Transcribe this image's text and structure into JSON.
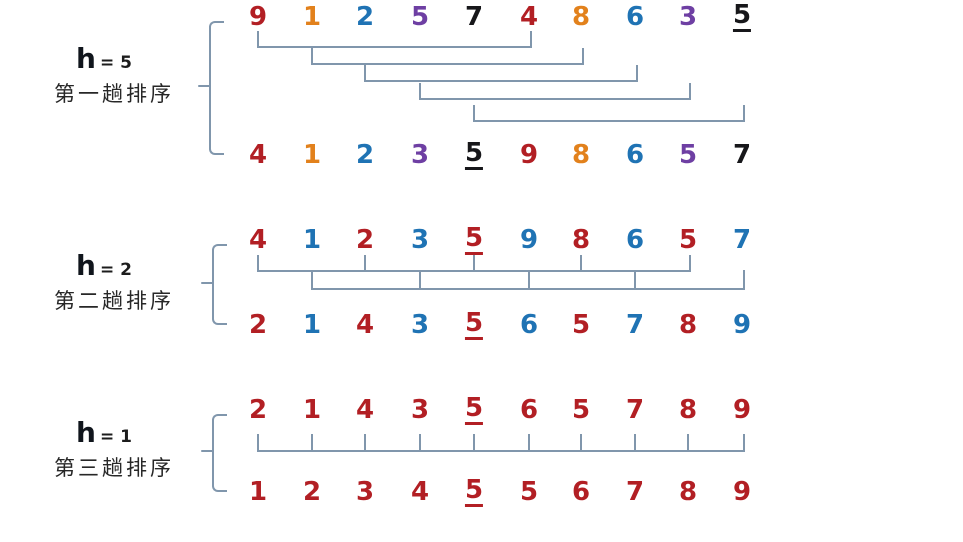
{
  "palette": {
    "red": "#b21f24",
    "orange": "#e2811c",
    "blue": "#1f73b4",
    "purple": "#6e3fa3",
    "black": "#17171a",
    "line": "#8096ac"
  },
  "sections": [
    {
      "h_var": "h",
      "h_eq": "= 5",
      "pass_label": "第一趟排序",
      "link_type": "pairs",
      "links": [
        [
          0,
          5
        ],
        [
          1,
          6
        ],
        [
          2,
          7
        ],
        [
          3,
          8
        ],
        [
          4,
          9
        ]
      ],
      "input": {
        "values": [
          "9",
          "1",
          "2",
          "5",
          "7",
          "4",
          "8",
          "6",
          "3",
          "5"
        ],
        "colors": [
          "red",
          "orange",
          "blue",
          "purple",
          "black",
          "red",
          "orange",
          "blue",
          "purple",
          "black"
        ],
        "underline": 9
      },
      "output": {
        "values": [
          "4",
          "1",
          "2",
          "3",
          "5",
          "9",
          "8",
          "6",
          "5",
          "7"
        ],
        "colors": [
          "red",
          "orange",
          "blue",
          "purple",
          "black",
          "red",
          "orange",
          "blue",
          "purple",
          "black"
        ],
        "underline": 4
      }
    },
    {
      "h_var": "h",
      "h_eq": "= 2",
      "pass_label": "第二趟排序",
      "link_type": "combs",
      "links": [
        [
          0,
          2,
          4,
          6,
          8
        ],
        [
          1,
          3,
          5,
          7,
          9
        ]
      ],
      "input": {
        "values": [
          "4",
          "1",
          "2",
          "3",
          "5",
          "9",
          "8",
          "6",
          "5",
          "7"
        ],
        "colors": [
          "red",
          "blue",
          "red",
          "blue",
          "red",
          "blue",
          "red",
          "blue",
          "red",
          "blue"
        ],
        "underline": 4
      },
      "output": {
        "values": [
          "2",
          "1",
          "4",
          "3",
          "5",
          "6",
          "5",
          "7",
          "8",
          "9"
        ],
        "colors": [
          "red",
          "blue",
          "red",
          "blue",
          "red",
          "blue",
          "red",
          "blue",
          "red",
          "blue"
        ],
        "underline": 4
      }
    },
    {
      "h_var": "h",
      "h_eq": "= 1",
      "pass_label": "第三趟排序",
      "link_type": "combs",
      "links": [
        [
          0,
          1,
          2,
          3,
          4,
          5,
          6,
          7,
          8,
          9
        ]
      ],
      "input": {
        "values": [
          "2",
          "1",
          "4",
          "3",
          "5",
          "6",
          "5",
          "7",
          "8",
          "9"
        ],
        "colors": [
          "red",
          "red",
          "red",
          "red",
          "red",
          "red",
          "red",
          "red",
          "red",
          "red"
        ],
        "underline": 4
      },
      "output": {
        "values": [
          "1",
          "2",
          "3",
          "4",
          "5",
          "5",
          "6",
          "7",
          "8",
          "9"
        ],
        "colors": [
          "red",
          "red",
          "red",
          "red",
          "red",
          "red",
          "red",
          "red",
          "red",
          "red"
        ],
        "underline": 4
      }
    }
  ]
}
